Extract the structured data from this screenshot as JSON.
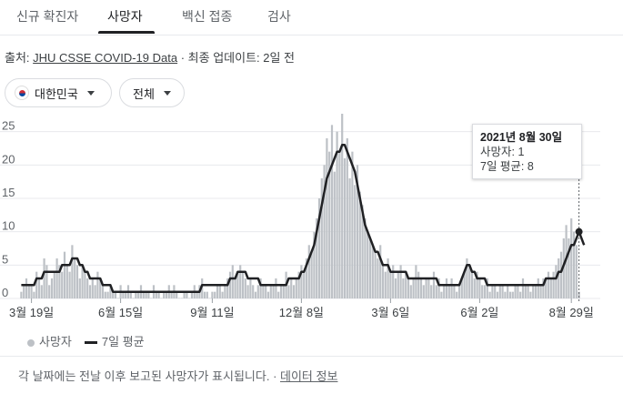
{
  "tabs": [
    {
      "label": "신규 확진자"
    },
    {
      "label": "사망자"
    },
    {
      "label": "백신 접종"
    },
    {
      "label": "검사"
    }
  ],
  "source": {
    "prefix": "출처: ",
    "link": "JHU CSSE COVID-19 Data",
    "separator": " · ",
    "updated": "최종 업데이트: 2일 전"
  },
  "filters": {
    "region": "대한민국",
    "range": "전체"
  },
  "tooltip": {
    "date": "2021년 8월 30일",
    "deaths": "사망자: 1",
    "avg": "7일 평균: 8"
  },
  "legend": {
    "deaths": "사망자",
    "avg": "7일 평균"
  },
  "footer": {
    "text": "각 날짜에는 전날 이후 보고된 사망자가 표시됩니다.",
    "separator": " · ",
    "link": "데이터 정보"
  },
  "colors": {
    "bars": "#bdc1c6",
    "line": "#202124",
    "accent": "#202124"
  },
  "chart_data": {
    "type": "bar",
    "ylim": [
      0,
      27
    ],
    "yticks": [
      0,
      5,
      10,
      15,
      20,
      25
    ],
    "xtick_labels": [
      "3월 19일",
      "6월 15일",
      "9월 11일",
      "12월 8일",
      "3월 6일",
      "6월 2일",
      "8월 29일"
    ],
    "series": [
      {
        "name": "사망자",
        "type": "bar",
        "values": [
          1,
          2,
          3,
          2,
          2,
          1,
          4,
          3,
          2,
          6,
          5,
          2,
          3,
          4,
          6,
          5,
          4,
          7,
          5,
          4,
          8,
          6,
          5,
          3,
          5,
          4,
          3,
          2,
          3,
          2,
          4,
          3,
          2,
          1,
          1,
          2,
          1,
          1,
          0,
          2,
          1,
          1,
          2,
          1,
          0,
          1,
          1,
          2,
          1,
          1,
          1,
          0,
          2,
          1,
          1,
          0,
          1,
          1,
          2,
          1,
          2,
          1,
          0,
          0,
          1,
          1,
          0,
          1,
          2,
          1,
          2,
          3,
          1,
          1,
          0,
          1,
          1,
          2,
          2,
          1,
          2,
          3,
          4,
          5,
          3,
          4,
          5,
          4,
          3,
          2,
          3,
          2,
          1,
          2,
          3,
          2,
          2,
          1,
          2,
          2,
          3,
          1,
          2,
          2,
          4,
          2,
          3,
          2,
          3,
          4,
          5,
          4,
          6,
          8,
          7,
          10,
          12,
          15,
          18,
          20,
          24,
          22,
          26,
          19,
          25,
          22,
          28,
          21,
          24,
          18,
          22,
          17,
          20,
          16,
          14,
          12,
          10,
          9,
          8,
          7,
          6,
          8,
          5,
          4,
          6,
          4,
          5,
          3,
          4,
          5,
          3,
          4,
          3,
          2,
          3,
          5,
          4,
          3,
          2,
          3,
          3,
          2,
          4,
          2,
          3,
          1,
          2,
          3,
          2,
          3,
          2,
          1,
          2,
          3,
          4,
          6,
          5,
          4,
          3,
          4,
          3,
          2,
          2,
          3,
          1,
          2,
          2,
          1,
          2,
          2,
          1,
          2,
          1,
          1,
          2,
          2,
          1,
          3,
          2,
          2,
          1,
          2,
          2,
          3,
          2,
          3,
          3,
          4,
          3,
          4,
          5,
          6,
          7,
          9,
          11,
          9,
          12,
          10,
          8,
          1
        ]
      },
      {
        "name": "7일 평균",
        "type": "line",
        "values": [
          2,
          2,
          2,
          2,
          2,
          2,
          3,
          3,
          3,
          4,
          4,
          4,
          4,
          4,
          4,
          4,
          5,
          5,
          5,
          5,
          6,
          6,
          6,
          5,
          5,
          4,
          4,
          3,
          3,
          3,
          3,
          3,
          2,
          2,
          2,
          2,
          1,
          1,
          1,
          1,
          1,
          1,
          1,
          1,
          1,
          1,
          1,
          1,
          1,
          1,
          1,
          1,
          1,
          1,
          1,
          1,
          1,
          1,
          1,
          1,
          1,
          1,
          1,
          1,
          1,
          1,
          1,
          1,
          1,
          1,
          1,
          2,
          2,
          2,
          2,
          2,
          2,
          2,
          2,
          2,
          2,
          2,
          3,
          3,
          3,
          4,
          4,
          4,
          4,
          3,
          3,
          3,
          3,
          3,
          2,
          2,
          2,
          2,
          2,
          2,
          2,
          2,
          2,
          2,
          2,
          3,
          3,
          3,
          3,
          3,
          4,
          4,
          5,
          6,
          7,
          8,
          10,
          12,
          14,
          16,
          18,
          19,
          20,
          21,
          22,
          22,
          23,
          23,
          22,
          21,
          20,
          19,
          17,
          15,
          13,
          11,
          10,
          9,
          8,
          7,
          7,
          6,
          5,
          5,
          5,
          4,
          4,
          4,
          4,
          4,
          4,
          4,
          3,
          3,
          3,
          3,
          3,
          3,
          3,
          3,
          3,
          3,
          3,
          3,
          2,
          2,
          2,
          2,
          2,
          2,
          2,
          2,
          2,
          3,
          4,
          5,
          5,
          4,
          4,
          3,
          3,
          3,
          3,
          2,
          2,
          2,
          2,
          2,
          2,
          2,
          2,
          2,
          2,
          2,
          2,
          2,
          2,
          2,
          2,
          2,
          2,
          2,
          2,
          2,
          2,
          2,
          3,
          3,
          3,
          3,
          3,
          4,
          4,
          5,
          6,
          7,
          8,
          8,
          9,
          10,
          9,
          8
        ]
      }
    ]
  }
}
